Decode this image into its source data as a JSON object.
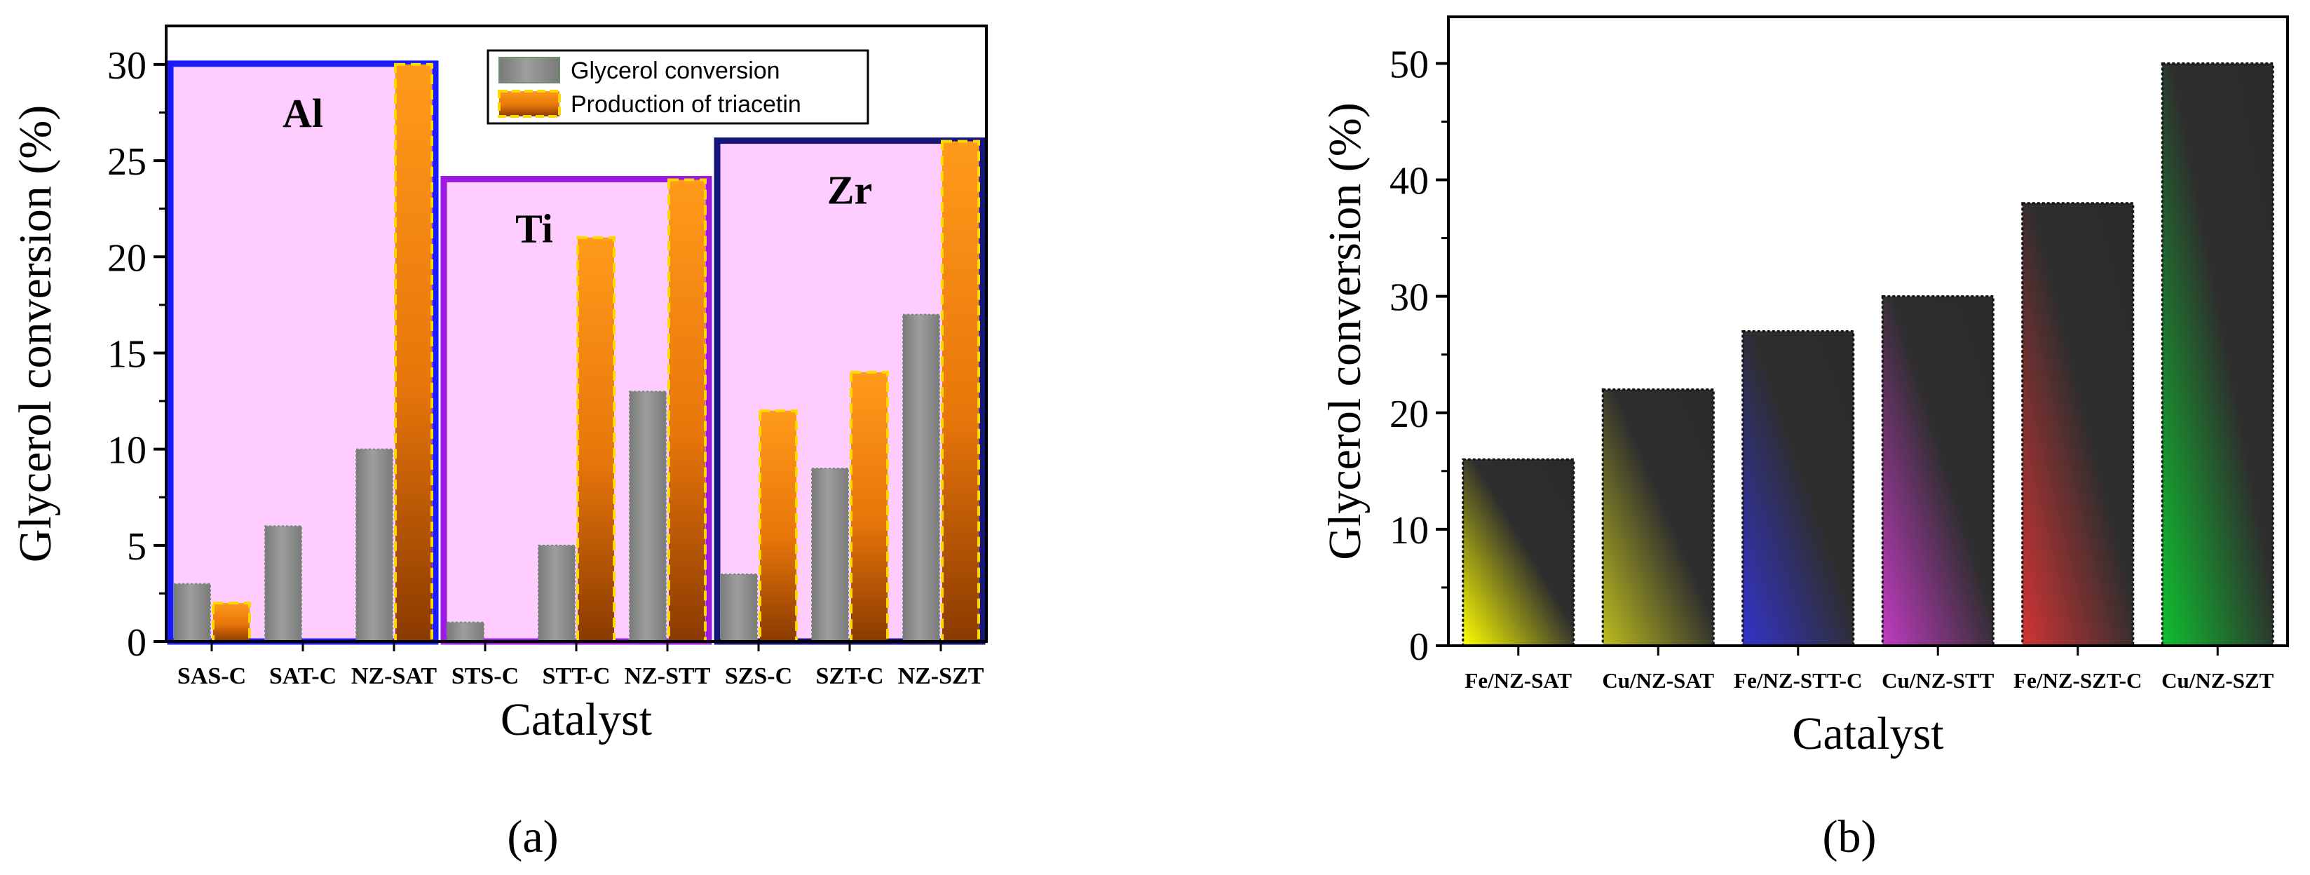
{
  "chart_data": [
    {
      "type": "bar",
      "panel_label": "(a)",
      "xlabel": "Catalyst",
      "ylabel": "Glycerol conversion (%)",
      "ylim": [
        0,
        32
      ],
      "yticks": [
        0,
        5,
        10,
        15,
        20,
        25,
        30
      ],
      "categories": [
        "SAS-C",
        "SAT-C",
        "NZ-SAT",
        "STS-C",
        "STT-C",
        "NZ-STT",
        "SZS-C",
        "SZT-C",
        "NZ-SZT"
      ],
      "series": [
        {
          "name": "Glycerol conversion",
          "values": [
            3,
            6,
            10,
            1,
            5,
            13,
            3.5,
            9,
            17
          ],
          "color": "#9e9e9e"
        },
        {
          "name": "Production of triacetin",
          "values": [
            2,
            0,
            30,
            0,
            21,
            24,
            12,
            14,
            26
          ],
          "color": "#ff8a00"
        }
      ],
      "groups": [
        {
          "label": "Al",
          "value": 30,
          "categories": [
            0,
            2
          ],
          "border_color": "#1a1aff"
        },
        {
          "label": "Ti",
          "value": 24,
          "categories": [
            3,
            5
          ],
          "border_color": "#9b19e0"
        },
        {
          "label": "Zr",
          "value": 26,
          "categories": [
            6,
            8
          ],
          "border_color": "#16167a"
        }
      ],
      "group_fill": "#ffccff",
      "legend_position": "top-right"
    },
    {
      "type": "bar",
      "panel_label": "(b)",
      "xlabel": "Catalyst",
      "ylabel": "Glycerol conversion (%)",
      "ylim": [
        0,
        54
      ],
      "yticks": [
        0,
        10,
        20,
        30,
        40,
        50
      ],
      "categories": [
        "Fe/NZ-SAT",
        "Cu/NZ-SAT",
        "Fe/NZ-STT-C",
        "Cu/NZ-STT",
        "Fe/NZ-SZT-C",
        "Cu/NZ-SZT"
      ],
      "values": [
        16,
        22,
        27,
        30,
        38,
        50
      ],
      "colors": [
        "#ffff00",
        "#bdbd1f",
        "#3333cc",
        "#c23bc2",
        "#d23434",
        "#0fbf2f"
      ]
    }
  ]
}
